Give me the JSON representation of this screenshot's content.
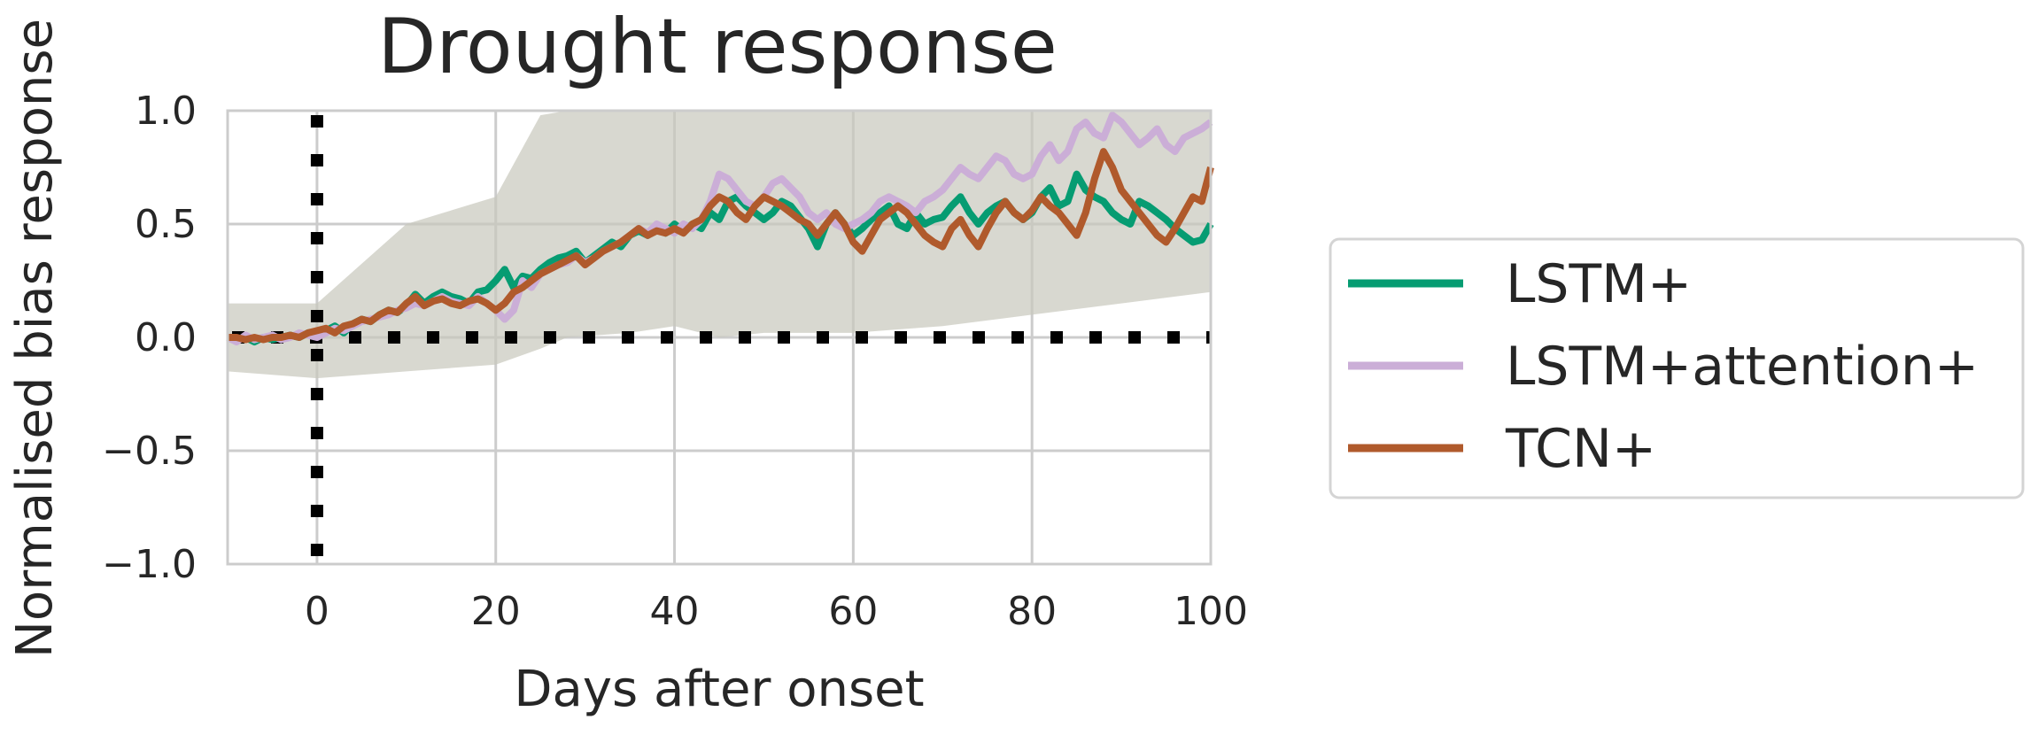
{
  "chart_data": {
    "type": "line",
    "title": "Drought response",
    "xlabel": "Days after onset",
    "ylabel": "Normalised bias response",
    "xlim": [
      -10,
      100
    ],
    "ylim": [
      -1.0,
      1.0
    ],
    "x_ticks": [
      0,
      20,
      40,
      60,
      80,
      100
    ],
    "x_tick_labels": [
      "0",
      "20",
      "40",
      "60",
      "80",
      "100"
    ],
    "y_ticks": [
      1.0,
      0.5,
      0.0,
      -0.5,
      -1.0
    ],
    "y_tick_labels": [
      "1.0",
      "0.5",
      "0.0",
      "−0.5",
      "−1.0"
    ],
    "grid": true,
    "legend_position": "right",
    "reference_lines": [
      {
        "orientation": "vertical",
        "x": 0,
        "style": "dotted",
        "color": "#000000"
      },
      {
        "orientation": "horizontal",
        "y": 0,
        "style": "dotted",
        "color": "#000000"
      }
    ],
    "band": {
      "x": [
        -10,
        0,
        10,
        20,
        25,
        28,
        35,
        40,
        45,
        50,
        60,
        70,
        80,
        90,
        100
      ],
      "upper": [
        0.15,
        0.15,
        0.5,
        0.62,
        0.98,
        1.0,
        1.0,
        1.0,
        1.0,
        1.0,
        1.0,
        1.0,
        1.0,
        1.0,
        1.0
      ],
      "lower": [
        -0.15,
        -0.18,
        -0.15,
        -0.12,
        -0.05,
        0.0,
        0.02,
        0.05,
        0.0,
        0.02,
        0.02,
        0.05,
        0.1,
        0.15,
        0.2
      ],
      "color": "#c8c8bc"
    },
    "x": [
      -10,
      -9,
      -8,
      -7,
      -6,
      -5,
      -4,
      -3,
      -2,
      -1,
      0,
      1,
      2,
      3,
      4,
      5,
      6,
      7,
      8,
      9,
      10,
      11,
      12,
      13,
      14,
      15,
      16,
      17,
      18,
      19,
      20,
      21,
      22,
      23,
      24,
      25,
      26,
      27,
      28,
      29,
      30,
      31,
      32,
      33,
      34,
      35,
      36,
      37,
      38,
      39,
      40,
      41,
      42,
      43,
      44,
      45,
      46,
      47,
      48,
      49,
      50,
      51,
      52,
      53,
      54,
      55,
      56,
      57,
      58,
      59,
      60,
      61,
      62,
      63,
      64,
      65,
      66,
      67,
      68,
      69,
      70,
      71,
      72,
      73,
      74,
      75,
      76,
      77,
      78,
      79,
      80,
      81,
      82,
      83,
      84,
      85,
      86,
      87,
      88,
      89,
      90,
      91,
      92,
      93,
      94,
      95,
      96,
      97,
      98,
      99,
      100
    ],
    "series": [
      {
        "name": "LSTM+",
        "color": "#069c72",
        "values": [
          0.0,
          -0.01,
          0.0,
          -0.02,
          0.0,
          -0.01,
          0.0,
          0.01,
          0.0,
          0.02,
          0.02,
          0.03,
          0.05,
          0.02,
          0.06,
          0.08,
          0.07,
          0.1,
          0.12,
          0.11,
          0.14,
          0.19,
          0.15,
          0.18,
          0.2,
          0.18,
          0.17,
          0.15,
          0.2,
          0.21,
          0.25,
          0.3,
          0.22,
          0.27,
          0.26,
          0.3,
          0.33,
          0.35,
          0.36,
          0.38,
          0.33,
          0.36,
          0.39,
          0.42,
          0.4,
          0.45,
          0.47,
          0.45,
          0.48,
          0.46,
          0.5,
          0.47,
          0.5,
          0.48,
          0.55,
          0.52,
          0.6,
          0.62,
          0.58,
          0.55,
          0.52,
          0.55,
          0.6,
          0.58,
          0.53,
          0.48,
          0.4,
          0.5,
          0.55,
          0.5,
          0.45,
          0.48,
          0.52,
          0.55,
          0.58,
          0.5,
          0.48,
          0.55,
          0.5,
          0.52,
          0.53,
          0.58,
          0.62,
          0.55,
          0.5,
          0.55,
          0.58,
          0.6,
          0.55,
          0.52,
          0.55,
          0.62,
          0.66,
          0.58,
          0.6,
          0.72,
          0.65,
          0.62,
          0.6,
          0.55,
          0.52,
          0.5,
          0.6,
          0.58,
          0.55,
          0.52,
          0.48,
          0.45,
          0.42,
          0.43,
          0.5
        ]
      },
      {
        "name": "LSTM+attention+",
        "color": "#cbaed7",
        "values": [
          0.0,
          -0.02,
          0.01,
          -0.01,
          0.0,
          0.01,
          -0.01,
          0.0,
          0.02,
          0.01,
          0.0,
          0.02,
          0.04,
          0.03,
          0.05,
          0.07,
          0.08,
          0.09,
          0.1,
          0.12,
          0.13,
          0.15,
          0.14,
          0.16,
          0.18,
          0.16,
          0.15,
          0.14,
          0.18,
          0.15,
          0.12,
          0.08,
          0.12,
          0.25,
          0.22,
          0.28,
          0.3,
          0.32,
          0.33,
          0.36,
          0.33,
          0.35,
          0.38,
          0.4,
          0.42,
          0.45,
          0.48,
          0.46,
          0.5,
          0.48,
          0.46,
          0.5,
          0.48,
          0.52,
          0.6,
          0.72,
          0.7,
          0.65,
          0.6,
          0.58,
          0.62,
          0.68,
          0.7,
          0.66,
          0.62,
          0.55,
          0.52,
          0.55,
          0.5,
          0.48,
          0.5,
          0.52,
          0.55,
          0.6,
          0.62,
          0.6,
          0.58,
          0.55,
          0.6,
          0.62,
          0.65,
          0.7,
          0.75,
          0.72,
          0.7,
          0.75,
          0.8,
          0.78,
          0.72,
          0.7,
          0.72,
          0.8,
          0.85,
          0.78,
          0.82,
          0.92,
          0.95,
          0.9,
          0.88,
          0.98,
          0.95,
          0.9,
          0.85,
          0.88,
          0.92,
          0.85,
          0.82,
          0.88,
          0.9,
          0.92,
          0.95
        ]
      },
      {
        "name": "TCN+",
        "color": "#b05a2c",
        "values": [
          0.0,
          0.0,
          -0.01,
          0.0,
          -0.01,
          0.0,
          0.0,
          0.01,
          0.0,
          0.02,
          0.03,
          0.04,
          0.02,
          0.05,
          0.06,
          0.08,
          0.07,
          0.1,
          0.12,
          0.11,
          0.15,
          0.18,
          0.14,
          0.16,
          0.17,
          0.15,
          0.14,
          0.16,
          0.17,
          0.15,
          0.12,
          0.15,
          0.2,
          0.22,
          0.25,
          0.28,
          0.3,
          0.32,
          0.34,
          0.36,
          0.32,
          0.35,
          0.38,
          0.4,
          0.42,
          0.45,
          0.48,
          0.45,
          0.47,
          0.46,
          0.48,
          0.46,
          0.5,
          0.52,
          0.58,
          0.62,
          0.6,
          0.55,
          0.52,
          0.58,
          0.62,
          0.6,
          0.58,
          0.55,
          0.52,
          0.5,
          0.45,
          0.5,
          0.55,
          0.5,
          0.42,
          0.38,
          0.45,
          0.52,
          0.55,
          0.58,
          0.55,
          0.5,
          0.45,
          0.42,
          0.4,
          0.48,
          0.52,
          0.45,
          0.4,
          0.48,
          0.55,
          0.6,
          0.55,
          0.52,
          0.56,
          0.62,
          0.58,
          0.55,
          0.5,
          0.45,
          0.55,
          0.7,
          0.82,
          0.75,
          0.65,
          0.6,
          0.55,
          0.5,
          0.45,
          0.42,
          0.48,
          0.55,
          0.62,
          0.6,
          0.75
        ]
      }
    ]
  }
}
